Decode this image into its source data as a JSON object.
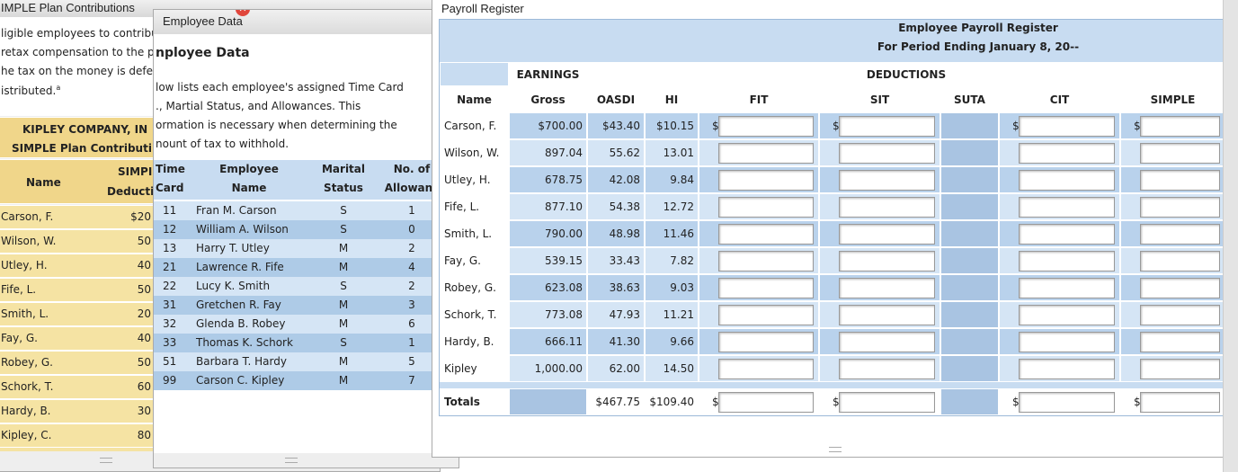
{
  "left_window": {
    "title": "IMPLE Plan Contributions",
    "intro": [
      "ligible employees to contribu",
      "retax compensation to the p",
      "he tax on the money is defe",
      "istributed."
    ],
    "intro_sup": "a",
    "table_title": [
      "KIPLEY COMPANY, IN",
      "SIMPLE Plan Contributi"
    ],
    "headers": [
      "Name",
      "SIMPI",
      "Deducti"
    ],
    "rows": [
      [
        "Carson, F.",
        "$20"
      ],
      [
        "Wilson, W.",
        "50"
      ],
      [
        "Utley, H.",
        "40"
      ],
      [
        "Fife, L.",
        "50"
      ],
      [
        "Smith, L.",
        "20"
      ],
      [
        "Fay, G.",
        "40"
      ],
      [
        "Robey, G.",
        "50"
      ],
      [
        "Schork, T.",
        "60"
      ],
      [
        "Hardy, B.",
        "30"
      ],
      [
        "Kipley, C.",
        "80"
      ]
    ]
  },
  "employee_window": {
    "title": "Employee Data",
    "heading": "nployee Data",
    "intro": [
      "low lists each employee's assigned Time Card",
      "., Martial Status, and Allowances. This",
      "ormation is necessary when determining the",
      "nount of tax to withhold."
    ],
    "headers": [
      [
        "Time",
        "Card"
      ],
      [
        "Employee",
        "Name"
      ],
      [
        "Marital",
        "Status"
      ],
      [
        "No. of",
        "Allowanc"
      ]
    ],
    "rows": [
      [
        "11",
        "Fran M. Carson",
        "S",
        "1"
      ],
      [
        "12",
        "William A. Wilson",
        "S",
        "0"
      ],
      [
        "13",
        "Harry T. Utley",
        "M",
        "2"
      ],
      [
        "21",
        "Lawrence R. Fife",
        "M",
        "4"
      ],
      [
        "22",
        "Lucy K. Smith",
        "S",
        "2"
      ],
      [
        "31",
        "Gretchen R. Fay",
        "M",
        "3"
      ],
      [
        "32",
        "Glenda B. Robey",
        "M",
        "6"
      ],
      [
        "33",
        "Thomas K. Schork",
        "S",
        "1"
      ],
      [
        "51",
        "Barbara T. Hardy",
        "M",
        "5"
      ],
      [
        "99",
        "Carson C. Kipley",
        "M",
        "7"
      ]
    ]
  },
  "payroll_window": {
    "title": "Payroll Register",
    "heading": [
      "Employee Payroll Register",
      "For Period Ending January 8, 20--"
    ],
    "groups": [
      "EARNINGS",
      "DEDUCTIONS"
    ],
    "headers": [
      "Name",
      "Gross",
      "OASDI",
      "HI",
      "FIT",
      "SIT",
      "SUTA",
      "CIT",
      "SIMPLE"
    ],
    "rows": [
      [
        "Carson, F.",
        "$700.00",
        "$43.40",
        "$10.15"
      ],
      [
        "Wilson, W.",
        "897.04",
        "55.62",
        "13.01"
      ],
      [
        "Utley, H.",
        "678.75",
        "42.08",
        "9.84"
      ],
      [
        "Fife, L.",
        "877.10",
        "54.38",
        "12.72"
      ],
      [
        "Smith, L.",
        "790.00",
        "48.98",
        "11.46"
      ],
      [
        "Fay, G.",
        "539.15",
        "33.43",
        "7.82"
      ],
      [
        "Robey, G.",
        "623.08",
        "38.63",
        "9.03"
      ],
      [
        "Schork, T.",
        "773.08",
        "47.93",
        "11.21"
      ],
      [
        "Hardy, B.",
        "666.11",
        "41.30",
        "9.66"
      ],
      [
        "Kipley",
        "1,000.00",
        "62.00",
        "14.50"
      ]
    ],
    "first_row_prefix": [
      "$",
      "$",
      "$",
      "$"
    ],
    "totals": {
      "label": "Totals",
      "values": [
        "$467.75",
        "$109.40"
      ],
      "prefix": [
        "$",
        "$",
        "$",
        "$"
      ]
    }
  }
}
